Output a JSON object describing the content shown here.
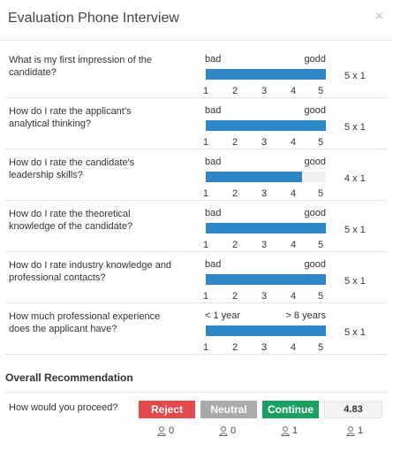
{
  "modal": {
    "title": "Evaluation Phone Interview",
    "close_glyph": "×"
  },
  "ticks": [
    "1",
    "2",
    "3",
    "4",
    "5"
  ],
  "questions": [
    {
      "text": "What is my first impression of the candidate?",
      "low": "bad",
      "high": "godd",
      "value": 5,
      "max": 5,
      "score": "5 x 1"
    },
    {
      "text": "How do I rate the applicant's analytical thinking?",
      "low": "bad",
      "high": "good",
      "value": 5,
      "max": 5,
      "score": "5 x 1"
    },
    {
      "text": "How do I rate the candidate's leadership skills?",
      "low": "bad",
      "high": "good",
      "value": 4,
      "max": 5,
      "score": "4 x 1"
    },
    {
      "text": "How do I rate the theoretical knowledge of the candidate?",
      "low": "bad",
      "high": "good",
      "value": 5,
      "max": 5,
      "score": "5 x 1"
    },
    {
      "text": "How do I rate industry knowledge and professional contacts?",
      "low": "bad",
      "high": "good",
      "value": 5,
      "max": 5,
      "score": "5 x 1"
    },
    {
      "text": "How much professional experience does the applicant have?",
      "low": "< 1 year",
      "high": "> 8 years",
      "value": 5,
      "max": 5,
      "score": "5 x 1"
    }
  ],
  "overall": {
    "title": "Overall Recommendation",
    "question": "How would you proceed?",
    "reject_label": "Reject",
    "neutral_label": "Neutral",
    "continue_label": "Continue",
    "total": "4.83",
    "votes": {
      "reject": "0",
      "neutral": "0",
      "continue": "1",
      "total": "1"
    }
  },
  "colors": {
    "fill": "#2e86c9",
    "reject": "#e6494a",
    "neutral": "#aaaaaa",
    "continue": "#1aa062"
  },
  "icons": {
    "close": "close-icon",
    "vote": "user-icon"
  }
}
